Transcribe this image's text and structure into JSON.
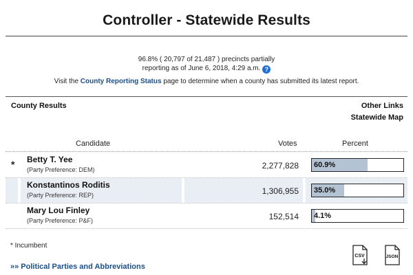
{
  "page": {
    "title": "Controller - Statewide Results"
  },
  "precincts": {
    "line1": "96.8% ( 20,797 of 21,487 ) precincts partially",
    "line2": "reporting as of June 6, 2018, 4:29 a.m.",
    "help_icon": "?"
  },
  "county_status": {
    "prefix": "Visit the ",
    "link": "County Reporting Status",
    "suffix": " page to determine when a county has submitted its latest report."
  },
  "nav": {
    "county_results": "County Results",
    "other_links": "Other Links",
    "statewide_map": "Statewide Map"
  },
  "table": {
    "headers": {
      "candidate": "Candidate",
      "votes": "Votes",
      "percent": "Percent"
    },
    "rows": [
      {
        "incumbent_mark": "*",
        "name": "Betty T. Yee",
        "party": "(Party Preference: DEM)",
        "votes": "2,277,828",
        "percent_label": "60.9%",
        "percent": 60.9
      },
      {
        "incumbent_mark": "",
        "name": "Konstantinos Roditis",
        "party": "(Party Preference: REP)",
        "votes": "1,306,955",
        "percent_label": "35.0%",
        "percent": 35.0
      },
      {
        "incumbent_mark": "",
        "name": "Mary Lou Finley",
        "party": "(Party Preference: P&F)",
        "votes": "152,514",
        "percent_label": "4.1%",
        "percent": 4.1
      }
    ]
  },
  "footer": {
    "incumbent_note": "* Incumbent",
    "parties_link": "»» Political Parties and Abbreviations",
    "csv_label": "CSV",
    "json_label": "JSON",
    "csv_icon": "csv-download-icon",
    "json_icon": "json-file-icon"
  },
  "colors": {
    "link": "#1b4f8a",
    "bar_fill": "#b3c3d3",
    "row_shade": "#e9eef4",
    "help_icon": "#1f6fd6"
  }
}
